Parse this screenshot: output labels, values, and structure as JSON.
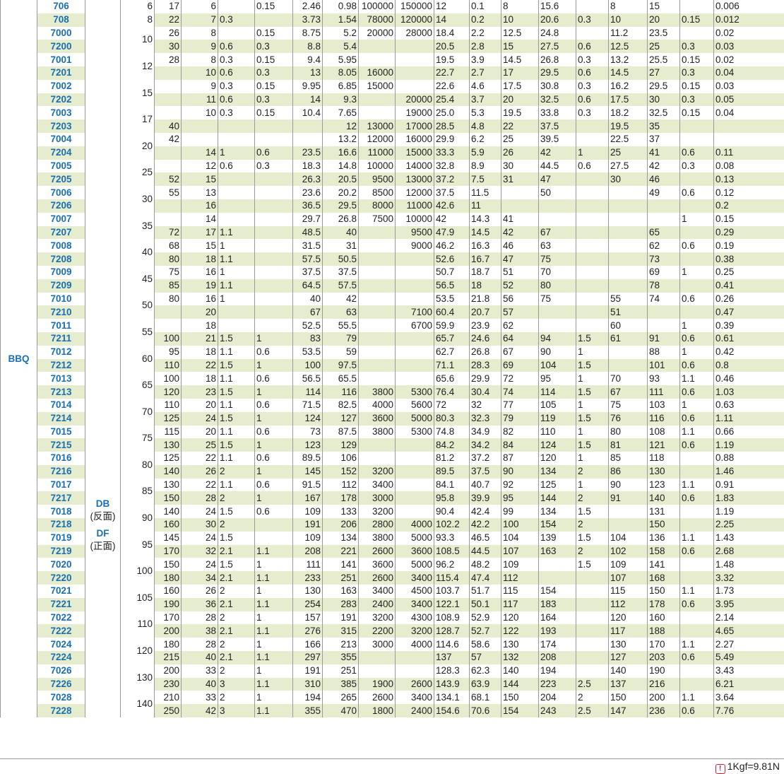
{
  "series_label": "BBQ",
  "arrangement": {
    "db": "DB",
    "db_sub": "(反面)",
    "df": "DF",
    "df_sub": "(正面)"
  },
  "footnote": "1Kgf=9.81N",
  "rows": [
    [
      "706",
      "6",
      "17",
      "6",
      "",
      "0.15",
      "2.46",
      "0.98",
      "100000",
      "150000",
      "12",
      "0.1",
      "8",
      "15.6",
      "",
      "8",
      "15",
      "",
      "0.006"
    ],
    [
      "708",
      "8",
      "22",
      "7",
      "0.3",
      "",
      "3.73",
      "1.54",
      "78000",
      "120000",
      "14",
      "0.2",
      "10",
      "20.6",
      "0.3",
      "10",
      "20",
      "0.15",
      "0.012"
    ],
    [
      "7000",
      "",
      "26",
      "8",
      "",
      "0.15",
      "8.75",
      "5.2",
      "20000",
      "28000",
      "18.4",
      "2.2",
      "12.5",
      "24.8",
      "",
      "11.2",
      "23.5",
      "",
      "0.02"
    ],
    [
      "7200",
      "",
      "30",
      "9",
      "0.6",
      "0.3",
      "8.8",
      "5.4",
      "",
      "",
      "20.5",
      "2.8",
      "15",
      "27.5",
      "0.6",
      "12.5",
      "25",
      "0.3",
      "0.03"
    ],
    [
      "7001",
      "",
      "28",
      "8",
      "0.3",
      "0.15",
      "9.4",
      "5.95",
      "",
      "",
      "19.5",
      "3.9",
      "14.5",
      "26.8",
      "0.3",
      "13.2",
      "25.5",
      "0.15",
      "0.02"
    ],
    [
      "7201",
      "",
      "",
      "10",
      "0.6",
      "0.3",
      "13",
      "8.05",
      "16000",
      "",
      "22.7",
      "2.7",
      "17",
      "29.5",
      "0.6",
      "14.5",
      "27",
      "0.3",
      "0.04"
    ],
    [
      "7002",
      "",
      "",
      "9",
      "0.3",
      "0.15",
      "9.95",
      "6.85",
      "15000",
      "",
      "22.6",
      "4.6",
      "17.5",
      "30.8",
      "0.3",
      "16.2",
      "29.5",
      "0.15",
      "0.03"
    ],
    [
      "7202",
      "",
      "",
      "11",
      "0.6",
      "0.3",
      "14",
      "9.3",
      "",
      "20000",
      "25.4",
      "3.7",
      "20",
      "32.5",
      "0.6",
      "17.5",
      "30",
      "0.3",
      "0.05"
    ],
    [
      "7003",
      "",
      "",
      "10",
      "0.3",
      "0.15",
      "10.4",
      "7.65",
      "",
      "19000",
      "25.0",
      "5.3",
      "19.5",
      "33.8",
      "0.3",
      "18.2",
      "32.5",
      "0.15",
      "0.04"
    ],
    [
      "7203",
      "",
      "40",
      "",
      "",
      "",
      "",
      "12",
      "13000",
      "17000",
      "28.5",
      "4.8",
      "22",
      "37.5",
      "",
      "19.5",
      "35",
      "",
      ""
    ],
    [
      "7004",
      "",
      "42",
      "",
      "",
      "",
      "",
      "13.2",
      "12000",
      "16000",
      "29.9",
      "6.2",
      "25",
      "39.5",
      "",
      "22.5",
      "37",
      "",
      ""
    ],
    [
      "7204",
      "",
      "",
      "14",
      "1",
      "0.6",
      "23.5",
      "16.6",
      "11000",
      "15000",
      "33.3",
      "5.9",
      "26",
      "42",
      "1",
      "25",
      "41",
      "0.6",
      "0.11"
    ],
    [
      "7005",
      "",
      "",
      "12",
      "0.6",
      "0.3",
      "18.3",
      "14.8",
      "10000",
      "14000",
      "32.8",
      "8.9",
      "30",
      "44.5",
      "0.6",
      "27.5",
      "42",
      "0.3",
      "0.08"
    ],
    [
      "7205",
      "",
      "52",
      "15",
      "",
      "",
      "26.3",
      "20.5",
      "9500",
      "13000",
      "37.2",
      "7.5",
      "31",
      "47",
      "",
      "30",
      "46",
      "",
      "0.13"
    ],
    [
      "7006",
      "",
      "55",
      "13",
      "",
      "",
      "23.6",
      "20.2",
      "8500",
      "12000",
      "37.5",
      "11.5",
      "",
      "50",
      "",
      "",
      "49",
      "0.6",
      "0.12"
    ],
    [
      "7206",
      "",
      "",
      "16",
      "",
      "",
      "36.5",
      "29.5",
      "8000",
      "11000",
      "42.6",
      "11",
      "",
      "",
      "",
      "",
      "",
      "",
      "0.2"
    ],
    [
      "7007",
      "",
      "",
      "14",
      "",
      "",
      "29.7",
      "26.8",
      "7500",
      "10000",
      "42",
      "14.3",
      "41",
      "",
      "",
      "",
      "",
      "1",
      "0.15"
    ],
    [
      "7207",
      "",
      "72",
      "17",
      "1.1",
      "",
      "48.5",
      "40",
      "",
      "9500",
      "47.9",
      "14.5",
      "42",
      "67",
      "",
      "",
      "65",
      "",
      "0.29"
    ],
    [
      "7008",
      "",
      "68",
      "15",
      "1",
      "",
      "31.5",
      "31",
      "",
      "9000",
      "46.2",
      "16.3",
      "46",
      "63",
      "",
      "",
      "62",
      "0.6",
      "0.19"
    ],
    [
      "7208",
      "",
      "80",
      "18",
      "1.1",
      "",
      "57.5",
      "50.5",
      "",
      "",
      "52.6",
      "16.7",
      "47",
      "75",
      "",
      "",
      "73",
      "",
      "0.38"
    ],
    [
      "7009",
      "",
      "75",
      "16",
      "1",
      "",
      "37.5",
      "37.5",
      "",
      "",
      "50.7",
      "18.7",
      "51",
      "70",
      "",
      "",
      "69",
      "1",
      "0.25"
    ],
    [
      "7209",
      "",
      "85",
      "19",
      "1.1",
      "",
      "64.5",
      "57.5",
      "",
      "",
      "56.5",
      "18",
      "52",
      "80",
      "",
      "",
      "78",
      "",
      "0.41"
    ],
    [
      "7010",
      "",
      "80",
      "16",
      "1",
      "",
      "40",
      "42",
      "",
      "",
      "53.5",
      "21.8",
      "56",
      "75",
      "",
      "55",
      "74",
      "0.6",
      "0.26"
    ],
    [
      "7210",
      "",
      "",
      "20",
      "",
      "",
      "67",
      "63",
      "",
      "7100",
      "60.4",
      "20.7",
      "57",
      "",
      "",
      "51",
      "",
      "",
      "0.47"
    ],
    [
      "7011",
      "",
      "",
      "18",
      "",
      "",
      "52.5",
      "55.5",
      "",
      "6700",
      "59.9",
      "23.9",
      "62",
      "",
      "",
      "60",
      "",
      "1",
      "0.39"
    ],
    [
      "7211",
      "",
      "100",
      "21",
      "1.5",
      "1",
      "83",
      "79",
      "",
      "",
      "65.7",
      "24.6",
      "64",
      "94",
      "1.5",
      "61",
      "91",
      "0.6",
      "0.61"
    ],
    [
      "7012",
      "",
      "95",
      "18",
      "1.1",
      "0.6",
      "53.5",
      "59",
      "",
      "",
      "62.7",
      "26.8",
      "67",
      "90",
      "1",
      "",
      "88",
      "1",
      "0.42"
    ],
    [
      "7212",
      "",
      "110",
      "22",
      "1.5",
      "1",
      "100",
      "97.5",
      "",
      "",
      "71.1",
      "28.3",
      "69",
      "104",
      "1.5",
      "",
      "101",
      "0.6",
      "0.8"
    ],
    [
      "7013",
      "",
      "100",
      "18",
      "1.1",
      "0.6",
      "56.5",
      "65.5",
      "",
      "",
      "65.6",
      "29.9",
      "72",
      "95",
      "1",
      "70",
      "93",
      "1.1",
      "0.46"
    ],
    [
      "7213",
      "",
      "120",
      "23",
      "1.5",
      "1",
      "114",
      "116",
      "3800",
      "5300",
      "76.4",
      "30.4",
      "74",
      "114",
      "1.5",
      "67",
      "111",
      "0.6",
      "1.03"
    ],
    [
      "7014",
      "",
      "110",
      "20",
      "1.1",
      "0.6",
      "71.5",
      "82.5",
      "4000",
      "5600",
      "72",
      "32",
      "77",
      "105",
      "1",
      "75",
      "103",
      "1",
      "0.63"
    ],
    [
      "7214",
      "",
      "125",
      "24",
      "1.5",
      "1",
      "124",
      "127",
      "3600",
      "5000",
      "80.3",
      "32.3",
      "79",
      "119",
      "1.5",
      "76",
      "116",
      "0.6",
      "1.11"
    ],
    [
      "7015",
      "",
      "115",
      "20",
      "1.1",
      "0.6",
      "73",
      "87.5",
      "3800",
      "5300",
      "74.8",
      "34.9",
      "82",
      "110",
      "1",
      "80",
      "108",
      "1.1",
      "0.66"
    ],
    [
      "7215",
      "",
      "130",
      "25",
      "1.5",
      "1",
      "123",
      "129",
      "",
      "",
      "84.2",
      "34.2",
      "84",
      "124",
      "1.5",
      "81",
      "121",
      "0.6",
      "1.19"
    ],
    [
      "7016",
      "",
      "125",
      "22",
      "1.1",
      "0.6",
      "89.5",
      "106",
      "",
      "",
      "81.2",
      "37.2",
      "87",
      "120",
      "1",
      "85",
      "118",
      "",
      "0.88"
    ],
    [
      "7216",
      "",
      "140",
      "26",
      "2",
      "1",
      "145",
      "152",
      "3200",
      "",
      "89.5",
      "37.5",
      "90",
      "134",
      "2",
      "86",
      "130",
      "",
      "1.46"
    ],
    [
      "7017",
      "",
      "130",
      "22",
      "1.1",
      "0.6",
      "91.5",
      "112",
      "3400",
      "",
      "84.1",
      "40.7",
      "92",
      "125",
      "1",
      "90",
      "123",
      "1.1",
      "0.91"
    ],
    [
      "7217",
      "",
      "150",
      "28",
      "2",
      "1",
      "167",
      "178",
      "3000",
      "",
      "95.8",
      "39.9",
      "95",
      "144",
      "2",
      "91",
      "140",
      "0.6",
      "1.83"
    ],
    [
      "7018",
      "",
      "140",
      "24",
      "1.5",
      "0.6",
      "109",
      "133",
      "3200",
      "",
      "90.4",
      "42.4",
      "99",
      "134",
      "1.5",
      "",
      "131",
      "",
      "1.19"
    ],
    [
      "7218",
      "",
      "160",
      "30",
      "2",
      "",
      "191",
      "206",
      "2800",
      "4000",
      "102.2",
      "42.2",
      "100",
      "154",
      "2",
      "",
      "150",
      "",
      "2.25"
    ],
    [
      "7019",
      "",
      "145",
      "24",
      "1.5",
      "",
      "109",
      "134",
      "3800",
      "5000",
      "93.3",
      "46.5",
      "104",
      "139",
      "1.5",
      "104",
      "136",
      "1.1",
      "1.43"
    ],
    [
      "7219",
      "",
      "170",
      "32",
      "2.1",
      "1.1",
      "208",
      "221",
      "2600",
      "3600",
      "108.5",
      "44.5",
      "107",
      "163",
      "2",
      "102",
      "158",
      "0.6",
      "2.68"
    ],
    [
      "7020",
      "",
      "150",
      "24",
      "1.5",
      "1",
      "111",
      "141",
      "3600",
      "5000",
      "96.2",
      "48.2",
      "109",
      "",
      "1.5",
      "109",
      "141",
      "",
      "1.48"
    ],
    [
      "7220",
      "",
      "180",
      "34",
      "2.1",
      "1.1",
      "233",
      "251",
      "2600",
      "3400",
      "115.4",
      "47.4",
      "112",
      "",
      "",
      "107",
      "168",
      "",
      "3.32"
    ],
    [
      "7021",
      "",
      "160",
      "26",
      "2",
      "1",
      "130",
      "163",
      "3400",
      "4500",
      "103.7",
      "51.7",
      "115",
      "154",
      "",
      "115",
      "150",
      "1.1",
      "1.73"
    ],
    [
      "7221",
      "",
      "190",
      "36",
      "2.1",
      "1.1",
      "254",
      "283",
      "2400",
      "3400",
      "122.1",
      "50.1",
      "117",
      "183",
      "",
      "112",
      "178",
      "0.6",
      "3.95"
    ],
    [
      "7022",
      "",
      "170",
      "28",
      "2",
      "1",
      "157",
      "191",
      "3200",
      "4300",
      "108.9",
      "52.9",
      "120",
      "164",
      "",
      "120",
      "160",
      "",
      "2.14"
    ],
    [
      "7222",
      "",
      "200",
      "38",
      "2.1",
      "1.1",
      "276",
      "315",
      "2200",
      "3200",
      "128.7",
      "52.7",
      "122",
      "193",
      "",
      "117",
      "188",
      "",
      "4.65"
    ],
    [
      "7024",
      "",
      "180",
      "28",
      "2",
      "1",
      "166",
      "213",
      "3000",
      "4000",
      "114.6",
      "58.6",
      "130",
      "174",
      "",
      "130",
      "170",
      "1.1",
      "2.27"
    ],
    [
      "7224",
      "",
      "215",
      "40",
      "2.1",
      "1.1",
      "297",
      "355",
      "",
      "",
      "137",
      "57",
      "132",
      "208",
      "",
      "127",
      "203",
      "0.6",
      "5.49"
    ],
    [
      "7026",
      "",
      "200",
      "33",
      "2",
      "1",
      "191",
      "251",
      "",
      "",
      "128.3",
      "62.3",
      "140",
      "194",
      "",
      "140",
      "190",
      "",
      "3.43"
    ],
    [
      "7226",
      "",
      "230",
      "40",
      "3",
      "1.1",
      "310",
      "385",
      "1900",
      "2600",
      "143.9",
      "63.9",
      "144",
      "223",
      "2.5",
      "137",
      "216",
      "",
      "6.21"
    ],
    [
      "7028",
      "",
      "210",
      "33",
      "2",
      "1",
      "194",
      "265",
      "2600",
      "3400",
      "134.1",
      "68.1",
      "150",
      "204",
      "2",
      "150",
      "200",
      "1.1",
      "3.64"
    ],
    [
      "7228",
      "",
      "250",
      "42",
      "3",
      "1.1",
      "355",
      "470",
      "1800",
      "2400",
      "154.6",
      "70.6",
      "154",
      "243",
      "2.5",
      "147",
      "236",
      "0.6",
      "7.76"
    ]
  ],
  "spans": [
    {
      "r": 0,
      "c": 1,
      "n": 1,
      "v": "6"
    },
    {
      "r": 1,
      "c": 1,
      "n": 1,
      "v": "8"
    },
    {
      "r": 2,
      "c": 1,
      "n": 2,
      "v": "10"
    },
    {
      "r": 4,
      "c": 1,
      "n": 2,
      "v": "12"
    },
    {
      "r": 6,
      "c": 1,
      "n": 2,
      "v": "15"
    },
    {
      "r": 8,
      "c": 1,
      "n": 2,
      "v": "17"
    },
    {
      "r": 10,
      "c": 1,
      "n": 2,
      "v": "20"
    },
    {
      "r": 12,
      "c": 1,
      "n": 2,
      "v": "25"
    },
    {
      "r": 14,
      "c": 1,
      "n": 2,
      "v": "30"
    },
    {
      "r": 16,
      "c": 1,
      "n": 2,
      "v": "35"
    },
    {
      "r": 18,
      "c": 1,
      "n": 2,
      "v": "40"
    },
    {
      "r": 20,
      "c": 1,
      "n": 2,
      "v": "45"
    },
    {
      "r": 22,
      "c": 1,
      "n": 2,
      "v": "50"
    },
    {
      "r": 24,
      "c": 1,
      "n": 2,
      "v": "55"
    },
    {
      "r": 26,
      "c": 1,
      "n": 2,
      "v": "60"
    },
    {
      "r": 28,
      "c": 1,
      "n": 2,
      "v": "65"
    },
    {
      "r": 30,
      "c": 1,
      "n": 2,
      "v": "70"
    },
    {
      "r": 32,
      "c": 1,
      "n": 2,
      "v": "75"
    },
    {
      "r": 34,
      "c": 1,
      "n": 2,
      "v": "80"
    },
    {
      "r": 36,
      "c": 1,
      "n": 2,
      "v": "85"
    },
    {
      "r": 38,
      "c": 1,
      "n": 2,
      "v": "90"
    },
    {
      "r": 40,
      "c": 1,
      "n": 2,
      "v": "95"
    },
    {
      "r": 42,
      "c": 1,
      "n": 2,
      "v": "100"
    },
    {
      "r": 44,
      "c": 1,
      "n": 2,
      "v": "105"
    },
    {
      "r": 46,
      "c": 1,
      "n": 2,
      "v": "110"
    },
    {
      "r": 48,
      "c": 1,
      "n": 2,
      "v": "120"
    },
    {
      "r": 50,
      "c": 1,
      "n": 2,
      "v": "130"
    },
    {
      "r": 52,
      "c": 1,
      "n": 2,
      "v": "140"
    }
  ]
}
